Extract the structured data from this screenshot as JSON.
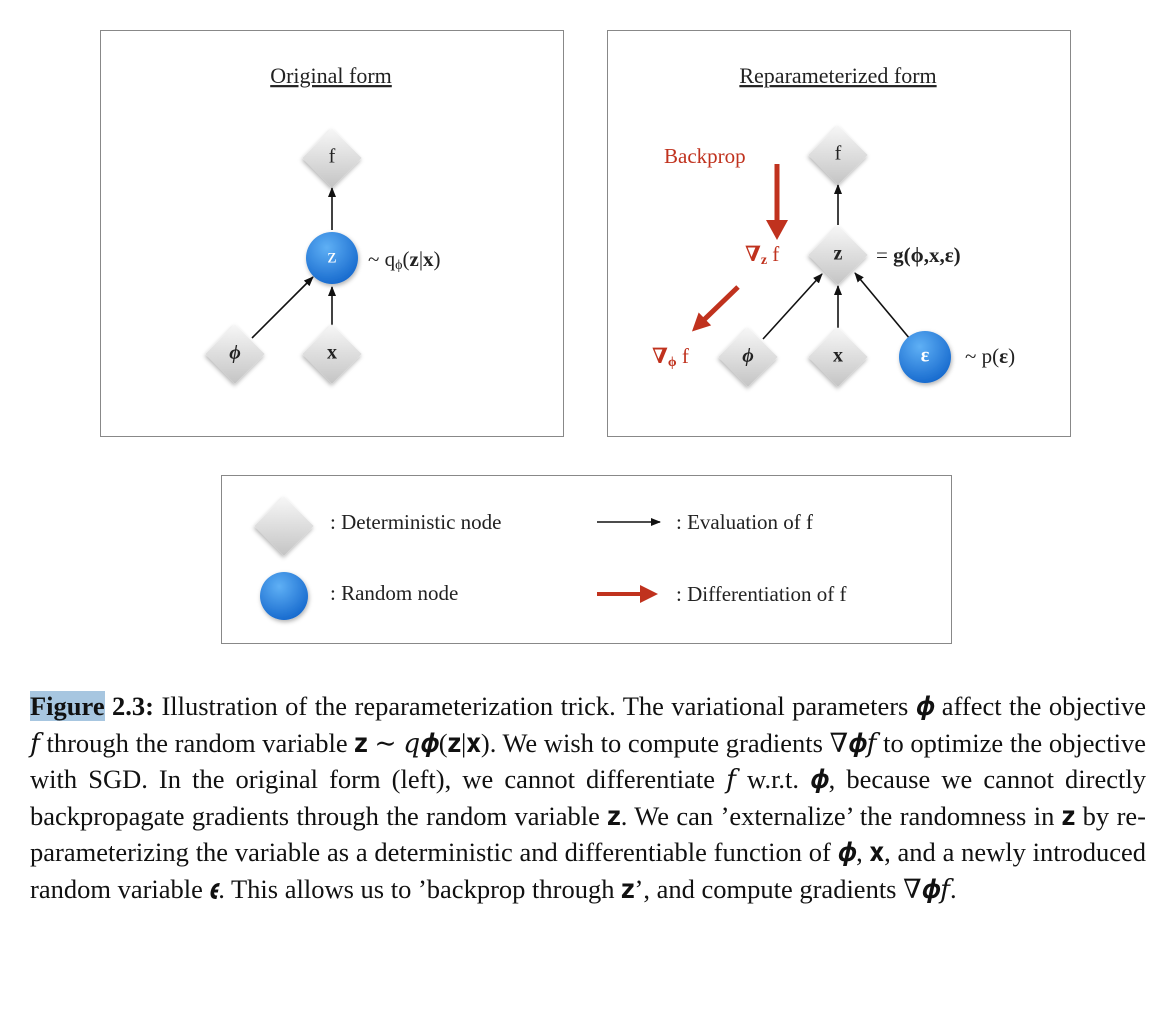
{
  "panels": [
    {
      "title": "Original form",
      "nodes": [
        "f",
        "z",
        "ϕ",
        "x"
      ],
      "annotation": {
        "prefix": "~ q",
        "sub": "ϕ",
        "open": "(",
        "var": "z",
        "bar": "|",
        "given": "x",
        "close": ")"
      }
    },
    {
      "title": "Reparameterized form",
      "nodes": [
        "f",
        "z",
        "ϕ",
        "x",
        "ε"
      ],
      "function": {
        "prefix": "= ",
        "name": "g",
        "args": "(ϕ,x,ε)"
      },
      "noise": {
        "prefix": "~ p(",
        "var": "ε",
        "close": ")"
      },
      "backprop": "Backprop",
      "grad_z": {
        "symbol": "∇",
        "sub": "z",
        "text": " f"
      },
      "grad_phi": {
        "symbol": "∇",
        "sub": "ϕ",
        "text": " f"
      }
    }
  ],
  "legend": [
    ": Deterministic node",
    ": Evaluation of f",
    ": Random node",
    ": Differentiation of f"
  ],
  "caption": {
    "label": "Figure",
    "number": " 2.3:",
    "text": " Illustration of the reparameterization trick. The variational parameters 𝝓 affect the objective 𝑓 through the random variable 𝐳 ∼ 𝑞𝝓(𝐳|𝐱). We wish to compute gradients ∇𝝓𝑓 to optimize the objective with SGD. In the original form (left), we cannot differentiate 𝑓 w.r.t. 𝝓, because we cannot directly backpropagate gradients through the random variable 𝐳. We can ’externalize’ the randomness in 𝐳 by re-parameterizing the variable as a deterministic and differentiable function of 𝝓, 𝐱, and a newly introduced random variable 𝝐. This allows us to ’backprop through 𝐳’, and compute gradients ∇𝝓𝑓."
  }
}
